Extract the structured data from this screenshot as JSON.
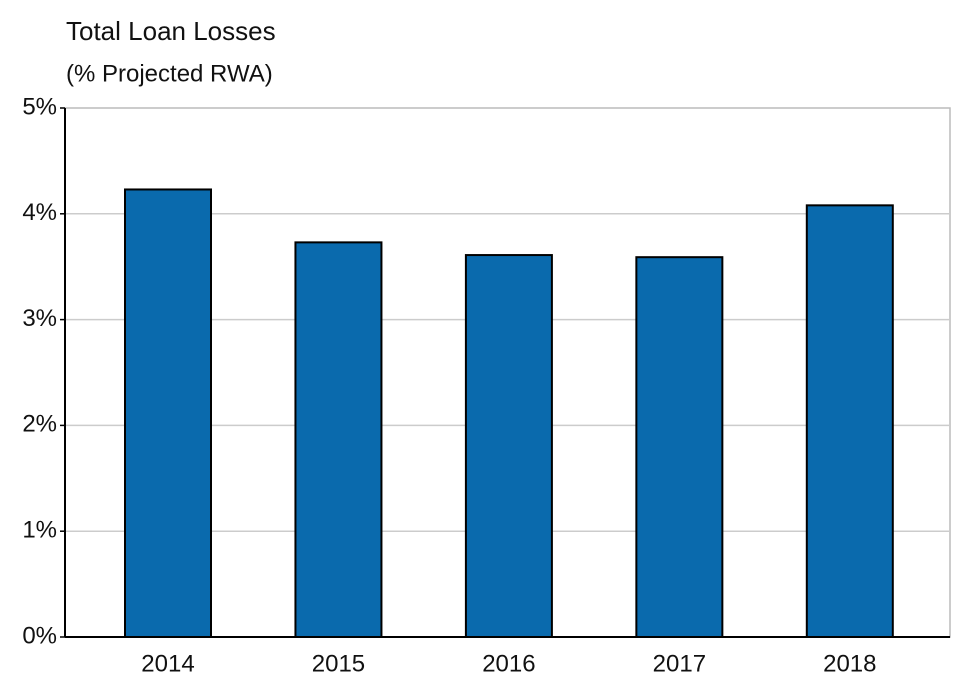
{
  "chart_data": {
    "type": "bar",
    "title": "Total Loan Losses",
    "subtitle": "(% Projected RWA)",
    "categories": [
      "2014",
      "2015",
      "2016",
      "2017",
      "2018"
    ],
    "values": [
      4.23,
      3.73,
      3.61,
      3.59,
      4.08
    ],
    "color": "#0a6aad",
    "ylim": [
      0,
      5
    ],
    "yticks": [
      {
        "value": 0,
        "label": "0%"
      },
      {
        "value": 1,
        "label": "1%"
      },
      {
        "value": 2,
        "label": "2%"
      },
      {
        "value": 3,
        "label": "3%"
      },
      {
        "value": 4,
        "label": "4%"
      },
      {
        "value": 5,
        "label": "5%"
      }
    ],
    "grid": true
  }
}
